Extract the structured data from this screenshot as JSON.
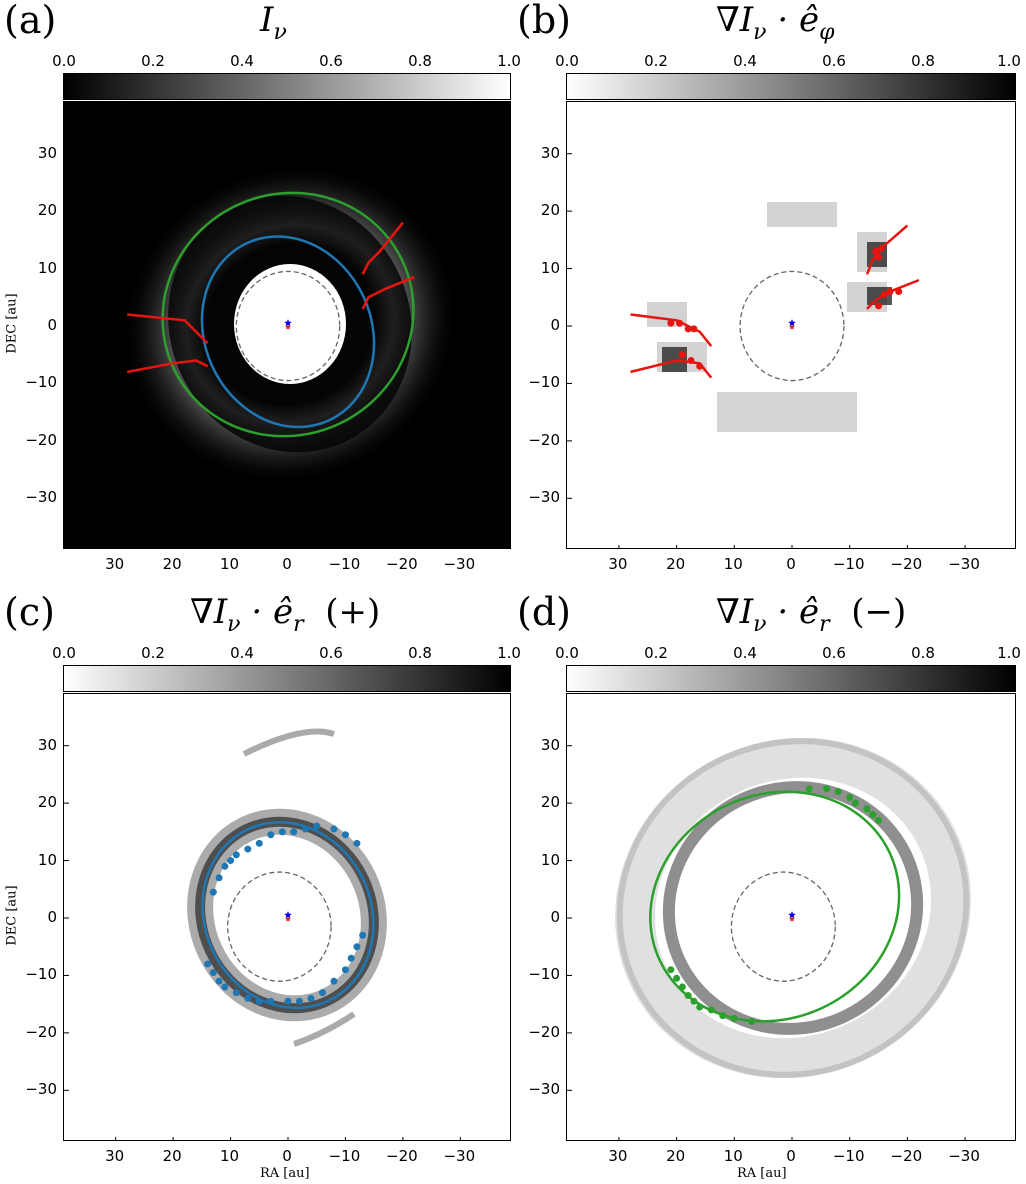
{
  "chart_data": [
    {
      "panel_label": "(a)",
      "title": "Iν",
      "type": "heatmap",
      "colormap": "gray",
      "colorbar_ticks": [
        "0.0",
        "0.2",
        "0.4",
        "0.6",
        "0.8",
        "1.0"
      ],
      "xlim": [
        39,
        -39
      ],
      "ylim": [
        -39,
        39
      ],
      "x_ticks": [
        30,
        20,
        10,
        0,
        -10,
        -20,
        -30
      ],
      "y_ticks": [
        30,
        20,
        10,
        0,
        -10,
        -20,
        -30
      ],
      "ylabel": "DEC [au]",
      "xlabel": "",
      "overlays": {
        "ellipses": [
          {
            "name": "blue",
            "color": "#1f77b4",
            "cx": 0,
            "cy": -1,
            "rx": 14.5,
            "ry": 17,
            "angle": -25
          },
          {
            "name": "green",
            "color": "#2ca02c",
            "cx": 0,
            "cy": 2,
            "rx": 22,
            "ry": 21,
            "angle": -25
          },
          {
            "name": "dashed-ref",
            "color": "#666666",
            "cx": 0,
            "cy": 0,
            "rx": 9,
            "ry": 9.5,
            "angle": 0
          }
        ],
        "red_curves": [
          [
            [
              28,
              2
            ],
            [
              18,
              1
            ],
            [
              15,
              -2
            ],
            [
              14,
              -3
            ]
          ],
          [
            [
              28,
              -8
            ],
            [
              20,
              -6.5
            ],
            [
              16,
              -6
            ],
            [
              14,
              -7
            ]
          ],
          [
            [
              -13,
              9
            ],
            [
              -14,
              11
            ],
            [
              -16,
              13
            ],
            [
              -20,
              18
            ]
          ],
          [
            [
              -13,
              3
            ],
            [
              -14,
              5
            ],
            [
              -17,
              6.5
            ],
            [
              -22,
              8.5
            ]
          ]
        ]
      }
    },
    {
      "panel_label": "(b)",
      "title": "∇Iν · êφ",
      "type": "heatmap",
      "colormap": "gray_r",
      "colorbar_ticks": [
        "0.0",
        "0.2",
        "0.4",
        "0.6",
        "0.8",
        "1.0"
      ],
      "xlim": [
        39,
        -39
      ],
      "ylim": [
        -39,
        39
      ],
      "x_ticks": [
        30,
        20,
        10,
        0,
        -10,
        -20,
        -30
      ],
      "y_ticks": [
        30,
        20,
        10,
        0,
        -10,
        -20,
        -30
      ],
      "ylabel": "",
      "xlabel": "",
      "overlays": {
        "red_points": [
          [
            21,
            0.5
          ],
          [
            19.5,
            0.5
          ],
          [
            18,
            -0.5
          ],
          [
            17,
            -0.5
          ],
          [
            19,
            -5
          ],
          [
            17.5,
            -6
          ],
          [
            16,
            -7
          ],
          [
            -14.5,
            13
          ],
          [
            -15.5,
            13.5
          ],
          [
            -15,
            12
          ],
          [
            -15,
            3.5
          ],
          [
            -16,
            5.5
          ],
          [
            -17,
            6
          ],
          [
            -18.5,
            6
          ]
        ],
        "red_curves": [
          [
            [
              28,
              2
            ],
            [
              20,
              1
            ],
            [
              16,
              -1
            ],
            [
              14,
              -3.5
            ]
          ],
          [
            [
              28,
              -8
            ],
            [
              20,
              -6
            ],
            [
              16,
              -6.5
            ],
            [
              14,
              -9
            ]
          ],
          [
            [
              -13,
              9
            ],
            [
              -14,
              11.5
            ],
            [
              -16,
              14
            ],
            [
              -20,
              17.5
            ]
          ],
          [
            [
              -13,
              3
            ],
            [
              -14.5,
              4.5
            ],
            [
              -17,
              6
            ],
            [
              -22,
              8
            ]
          ]
        ]
      }
    },
    {
      "panel_label": "(c)",
      "title": "∇Iν · êr  (+)",
      "type": "heatmap",
      "colormap": "gray_r",
      "colorbar_ticks": [
        "0.0",
        "0.2",
        "0.4",
        "0.6",
        "0.8",
        "1.0"
      ],
      "xlim": [
        39,
        -39
      ],
      "ylim": [
        -39,
        39
      ],
      "x_ticks": [
        30,
        20,
        10,
        0,
        -10,
        -20,
        -30
      ],
      "y_ticks": [
        30,
        20,
        10,
        0,
        -10,
        -20,
        -30
      ],
      "ylabel": "DEC [au]",
      "xlabel": "RA [au]",
      "overlays": {
        "ellipse_color": "#1f77b4",
        "blue_points": [
          [
            13,
            4.5
          ],
          [
            12,
            7
          ],
          [
            11,
            9
          ],
          [
            10,
            10
          ],
          [
            9,
            11
          ],
          [
            7,
            12
          ],
          [
            5,
            13
          ],
          [
            3,
            14.5
          ],
          [
            1,
            15
          ],
          [
            -1,
            15
          ],
          [
            -3,
            15.5
          ],
          [
            -5,
            16
          ],
          [
            -8,
            15.5
          ],
          [
            -10,
            14.5
          ],
          [
            -12,
            13
          ],
          [
            14,
            -8
          ],
          [
            13,
            -9.5
          ],
          [
            12,
            -11
          ],
          [
            11,
            -12
          ],
          [
            9,
            -13
          ],
          [
            7,
            -14
          ],
          [
            5,
            -14.5
          ],
          [
            3,
            -14.5
          ],
          [
            0,
            -14.5
          ],
          [
            -2,
            -14.5
          ],
          [
            -4,
            -14
          ],
          [
            -6,
            -13
          ],
          [
            -8,
            -11
          ],
          [
            -10,
            -9
          ],
          [
            -11,
            -7
          ],
          [
            -12,
            -5
          ],
          [
            -13,
            -3
          ]
        ]
      }
    },
    {
      "panel_label": "(d)",
      "title": "∇Iν · êr  (−)",
      "type": "heatmap",
      "colormap": "gray_r",
      "colorbar_ticks": [
        "0.0",
        "0.2",
        "0.4",
        "0.6",
        "0.8",
        "1.0"
      ],
      "xlim": [
        39,
        -39
      ],
      "ylim": [
        -39,
        39
      ],
      "x_ticks": [
        30,
        20,
        10,
        0,
        -10,
        -20,
        -30
      ],
      "y_ticks": [
        30,
        20,
        10,
        0,
        -10,
        -20,
        -30
      ],
      "ylabel": "",
      "xlabel": "RA [au]",
      "overlays": {
        "ellipse_color": "#2ca02c",
        "green_points": [
          [
            -3,
            22.5
          ],
          [
            -6,
            22.5
          ],
          [
            -8,
            22
          ],
          [
            -10,
            21
          ],
          [
            -11,
            20
          ],
          [
            -13,
            19
          ],
          [
            -14,
            18
          ],
          [
            -15,
            17
          ],
          [
            21,
            -9
          ],
          [
            20,
            -10.5
          ],
          [
            19,
            -12
          ],
          [
            18,
            -13.5
          ],
          [
            17,
            -14.5
          ],
          [
            16,
            -15.5
          ],
          [
            14,
            -16
          ],
          [
            12,
            -17
          ],
          [
            10,
            -17.5
          ],
          [
            7,
            -18
          ]
        ]
      }
    }
  ]
}
